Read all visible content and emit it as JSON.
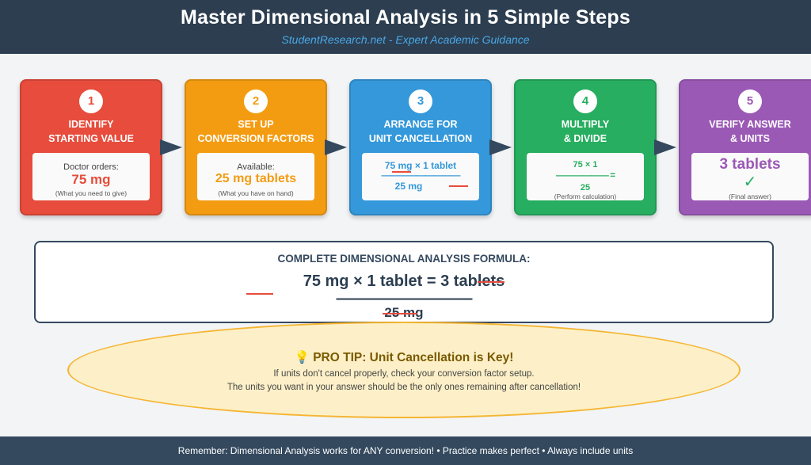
{
  "header": {
    "title": "Master Dimensional Analysis in 5 Simple Steps",
    "subtitle": "StudentResearch.net - Expert Academic Guidance"
  },
  "steps": [
    {
      "number": "1",
      "heading_line1": "IDENTIFY",
      "heading_line2": "STARTING VALUE",
      "label": "Doctor orders:",
      "value": "75 mg",
      "note": "(What you need to give)"
    },
    {
      "number": "2",
      "heading_line1": "SET UP",
      "heading_line2": "CONVERSION FACTORS",
      "label": "Available:",
      "value": "25 mg tablets",
      "note": "(What you have on hand)"
    },
    {
      "number": "3",
      "heading_line1": "ARRANGE FOR",
      "heading_line2": "UNIT CANCELLATION",
      "numerator": "75 mg × 1 tablet",
      "fraction_bar": "—————————",
      "denominator": "25 mg"
    },
    {
      "number": "4",
      "heading_line1": "MULTIPLY",
      "heading_line2": "& DIVIDE",
      "numerator": "75 × 1",
      "fraction_bar": "—————— =",
      "denominator": "25",
      "note": "(Perform calculation)"
    },
    {
      "number": "5",
      "heading_line1": "VERIFY ANSWER",
      "heading_line2": "& UNITS",
      "value": "3 tablets",
      "check": "✓",
      "note": "(Final answer)"
    }
  ],
  "formula": {
    "title": "COMPLETE DIMENSIONAL ANALYSIS FORMULA:",
    "numerator_prefix": "75 mg × 1 tablet = 3 tab",
    "numerator_struck": "lets",
    "fraction_bar": "—————————",
    "denominator_struck": "25 mg"
  },
  "tip": {
    "icon": "💡",
    "title": "PRO TIP: Unit Cancellation is Key!",
    "line1": "If units don't cancel properly, check your conversion factor setup.",
    "line2": "The units you want in your answer should be the only ones remaining after cancellation!"
  },
  "footer": {
    "text": "Remember: Dimensional Analysis works for ANY conversion! • Practice makes perfect • Always include units"
  },
  "colors": {
    "step1": "#e74c3c",
    "step2": "#f39c12",
    "step3": "#3498db",
    "step4": "#27ae60",
    "step5": "#9b59b6",
    "header": "#2c3e50",
    "cancel_mark": "#e74c3c",
    "tip_border": "#f5b532"
  }
}
